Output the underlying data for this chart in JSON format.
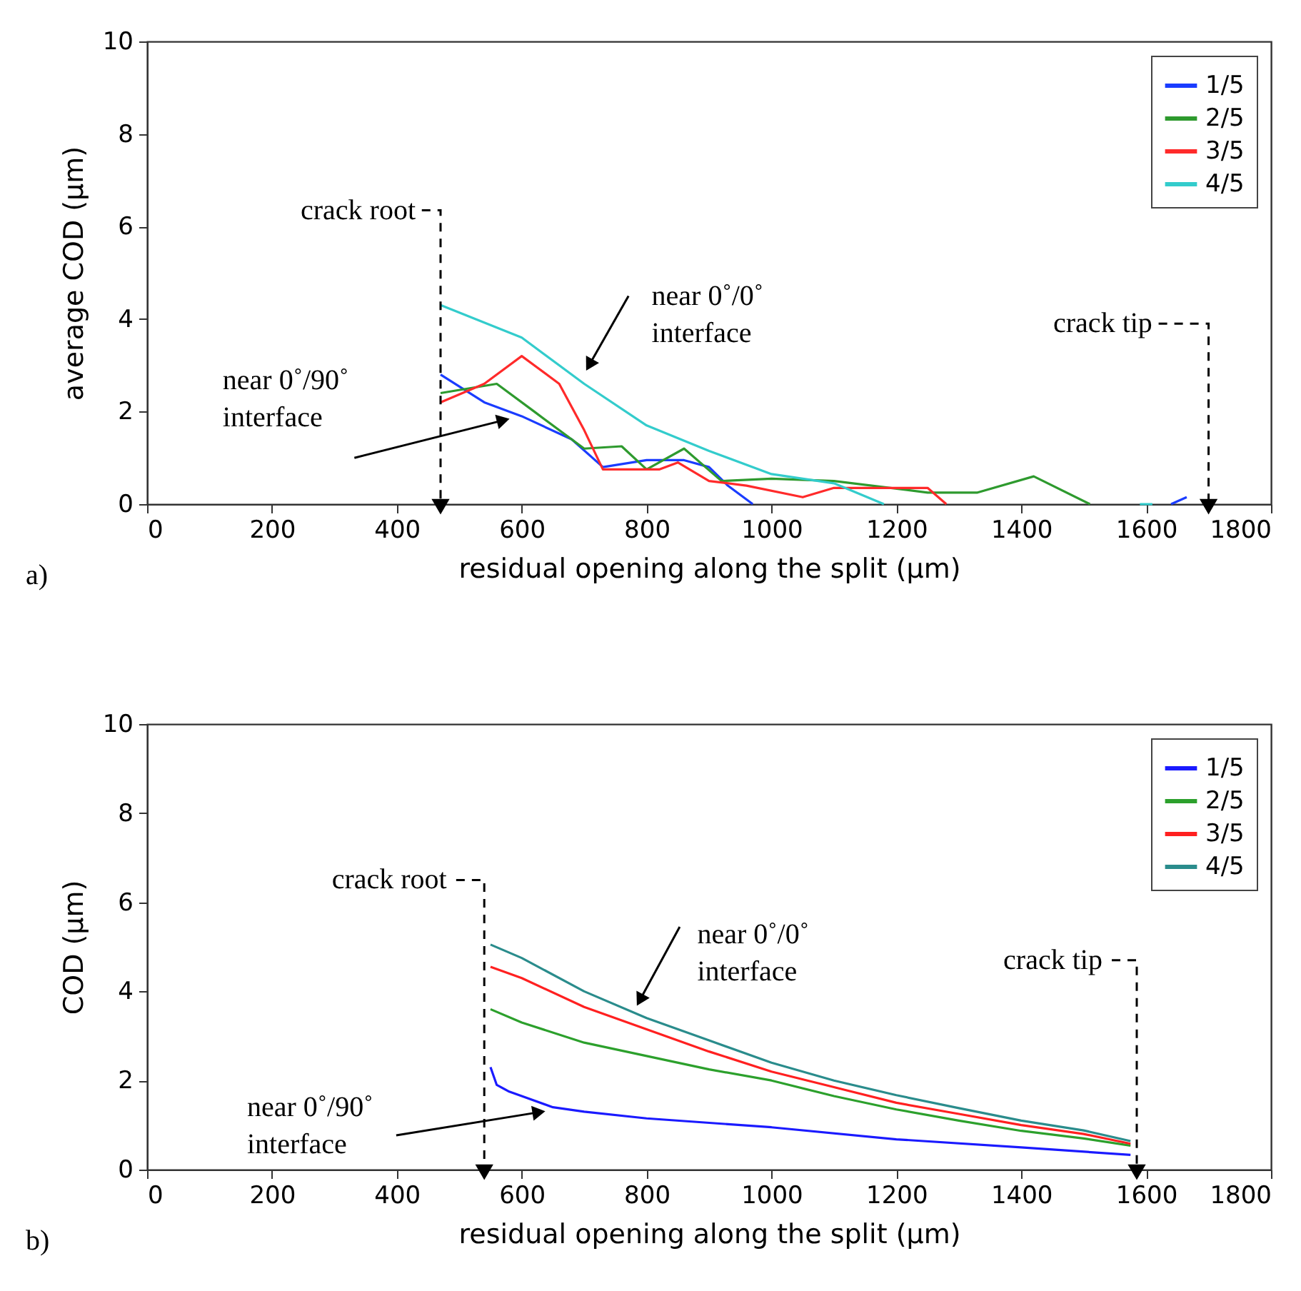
{
  "chart_data": [
    {
      "type": "line",
      "ylabel": "average COD (µm)",
      "xlabel": "residual opening along the split (µm)",
      "xlim": [
        0,
        1800
      ],
      "xticks": [
        0,
        200,
        400,
        600,
        800,
        1000,
        1200,
        1400,
        1600,
        1800
      ],
      "ylim": [
        0,
        10
      ],
      "yticks": [
        0,
        2,
        4,
        6,
        8,
        10
      ],
      "legend": "top right",
      "series": [
        {
          "name": "1/5",
          "color": "#1a3cff",
          "x": [
            470,
            540,
            600,
            680,
            730,
            800,
            860,
            900,
            930,
            970,
            1300,
            1640,
            1665
          ],
          "values": [
            2.8,
            2.2,
            1.9,
            1.4,
            0.8,
            0.95,
            0.95,
            0.8,
            0.4,
            0,
            null,
            0,
            0.15
          ]
        },
        {
          "name": "2/5",
          "color": "#2e9a2e",
          "x": [
            470,
            560,
            620,
            700,
            760,
            800,
            860,
            920,
            1000,
            1100,
            1250,
            1330,
            1420,
            1510
          ],
          "values": [
            2.4,
            2.6,
            2.0,
            1.2,
            1.25,
            0.75,
            1.2,
            0.5,
            0.55,
            0.5,
            0.25,
            0.25,
            0.6,
            0
          ]
        },
        {
          "name": "3/5",
          "color": "#ff2a2a",
          "x": [
            470,
            540,
            600,
            660,
            700,
            730,
            820,
            850,
            900,
            960,
            1050,
            1100,
            1250,
            1280
          ],
          "values": [
            2.2,
            2.6,
            3.2,
            2.6,
            1.6,
            0.75,
            0.75,
            0.9,
            0.5,
            0.4,
            0.15,
            0.35,
            0.35,
            0
          ]
        },
        {
          "name": "4/5",
          "color": "#33cccc",
          "x": [
            470,
            600,
            700,
            800,
            900,
            1000,
            1100,
            1180,
            1400,
            1590,
            1610
          ],
          "values": [
            4.3,
            3.6,
            2.6,
            1.7,
            1.15,
            0.65,
            0.45,
            0,
            null,
            0,
            0
          ]
        }
      ],
      "annotations": [
        {
          "text": "crack root",
          "x": 470,
          "y": 0
        },
        {
          "text": "crack tip",
          "x": 1700,
          "y": 0
        },
        {
          "text": "near 0˚/0˚\ninterface",
          "x": 710,
          "y": 3.05
        },
        {
          "text": "near 0˚/90˚\ninterface",
          "x": 567,
          "y": 1.8
        },
        "a)"
      ]
    },
    {
      "type": "line",
      "ylabel": "COD (µm)",
      "xlabel": "residual opening along the split (µm)",
      "xlim": [
        0,
        1800
      ],
      "xticks": [
        0,
        200,
        400,
        600,
        800,
        1000,
        1200,
        1400,
        1600,
        1800
      ],
      "ylim": [
        0,
        10
      ],
      "yticks": [
        0,
        2,
        4,
        6,
        8,
        10
      ],
      "legend": "top right",
      "series": [
        {
          "name": "1/5",
          "color": "#1a1aff",
          "x": [
            550,
            560,
            580,
            600,
            650,
            700,
            800,
            1000,
            1200,
            1400,
            1575
          ],
          "values": [
            2.3,
            1.9,
            1.75,
            1.65,
            1.4,
            1.3,
            1.15,
            0.95,
            0.68,
            0.5,
            0.33
          ]
        },
        {
          "name": "2/5",
          "color": "#2ca02c",
          "x": [
            550,
            600,
            700,
            800,
            900,
            1000,
            1100,
            1200,
            1300,
            1400,
            1500,
            1575
          ],
          "values": [
            3.6,
            3.3,
            2.85,
            2.55,
            2.25,
            2.0,
            1.65,
            1.35,
            1.1,
            0.87,
            0.7,
            0.54
          ]
        },
        {
          "name": "3/5",
          "color": "#ff2020",
          "x": [
            550,
            600,
            700,
            800,
            900,
            1000,
            1100,
            1200,
            1300,
            1400,
            1500,
            1575
          ],
          "values": [
            4.55,
            4.3,
            3.65,
            3.15,
            2.65,
            2.2,
            1.85,
            1.5,
            1.25,
            1.0,
            0.8,
            0.58
          ]
        },
        {
          "name": "4/5",
          "color": "#2a8c8c",
          "x": [
            550,
            600,
            700,
            800,
            900,
            1000,
            1100,
            1200,
            1300,
            1400,
            1500,
            1575
          ],
          "values": [
            5.05,
            4.75,
            4.0,
            3.4,
            2.9,
            2.4,
            2.0,
            1.67,
            1.38,
            1.1,
            0.88,
            0.64
          ]
        }
      ],
      "annotations": [
        {
          "text": "crack root",
          "x": 540,
          "y": 0
        },
        {
          "text": "crack tip",
          "x": 1585,
          "y": 0
        },
        {
          "text": "near 0˚/0˚\ninterface",
          "x": 791,
          "y": 3.85
        },
        {
          "text": "near 0˚/90˚\ninterface",
          "x": 624,
          "y": 1.28
        },
        "b)"
      ]
    }
  ]
}
